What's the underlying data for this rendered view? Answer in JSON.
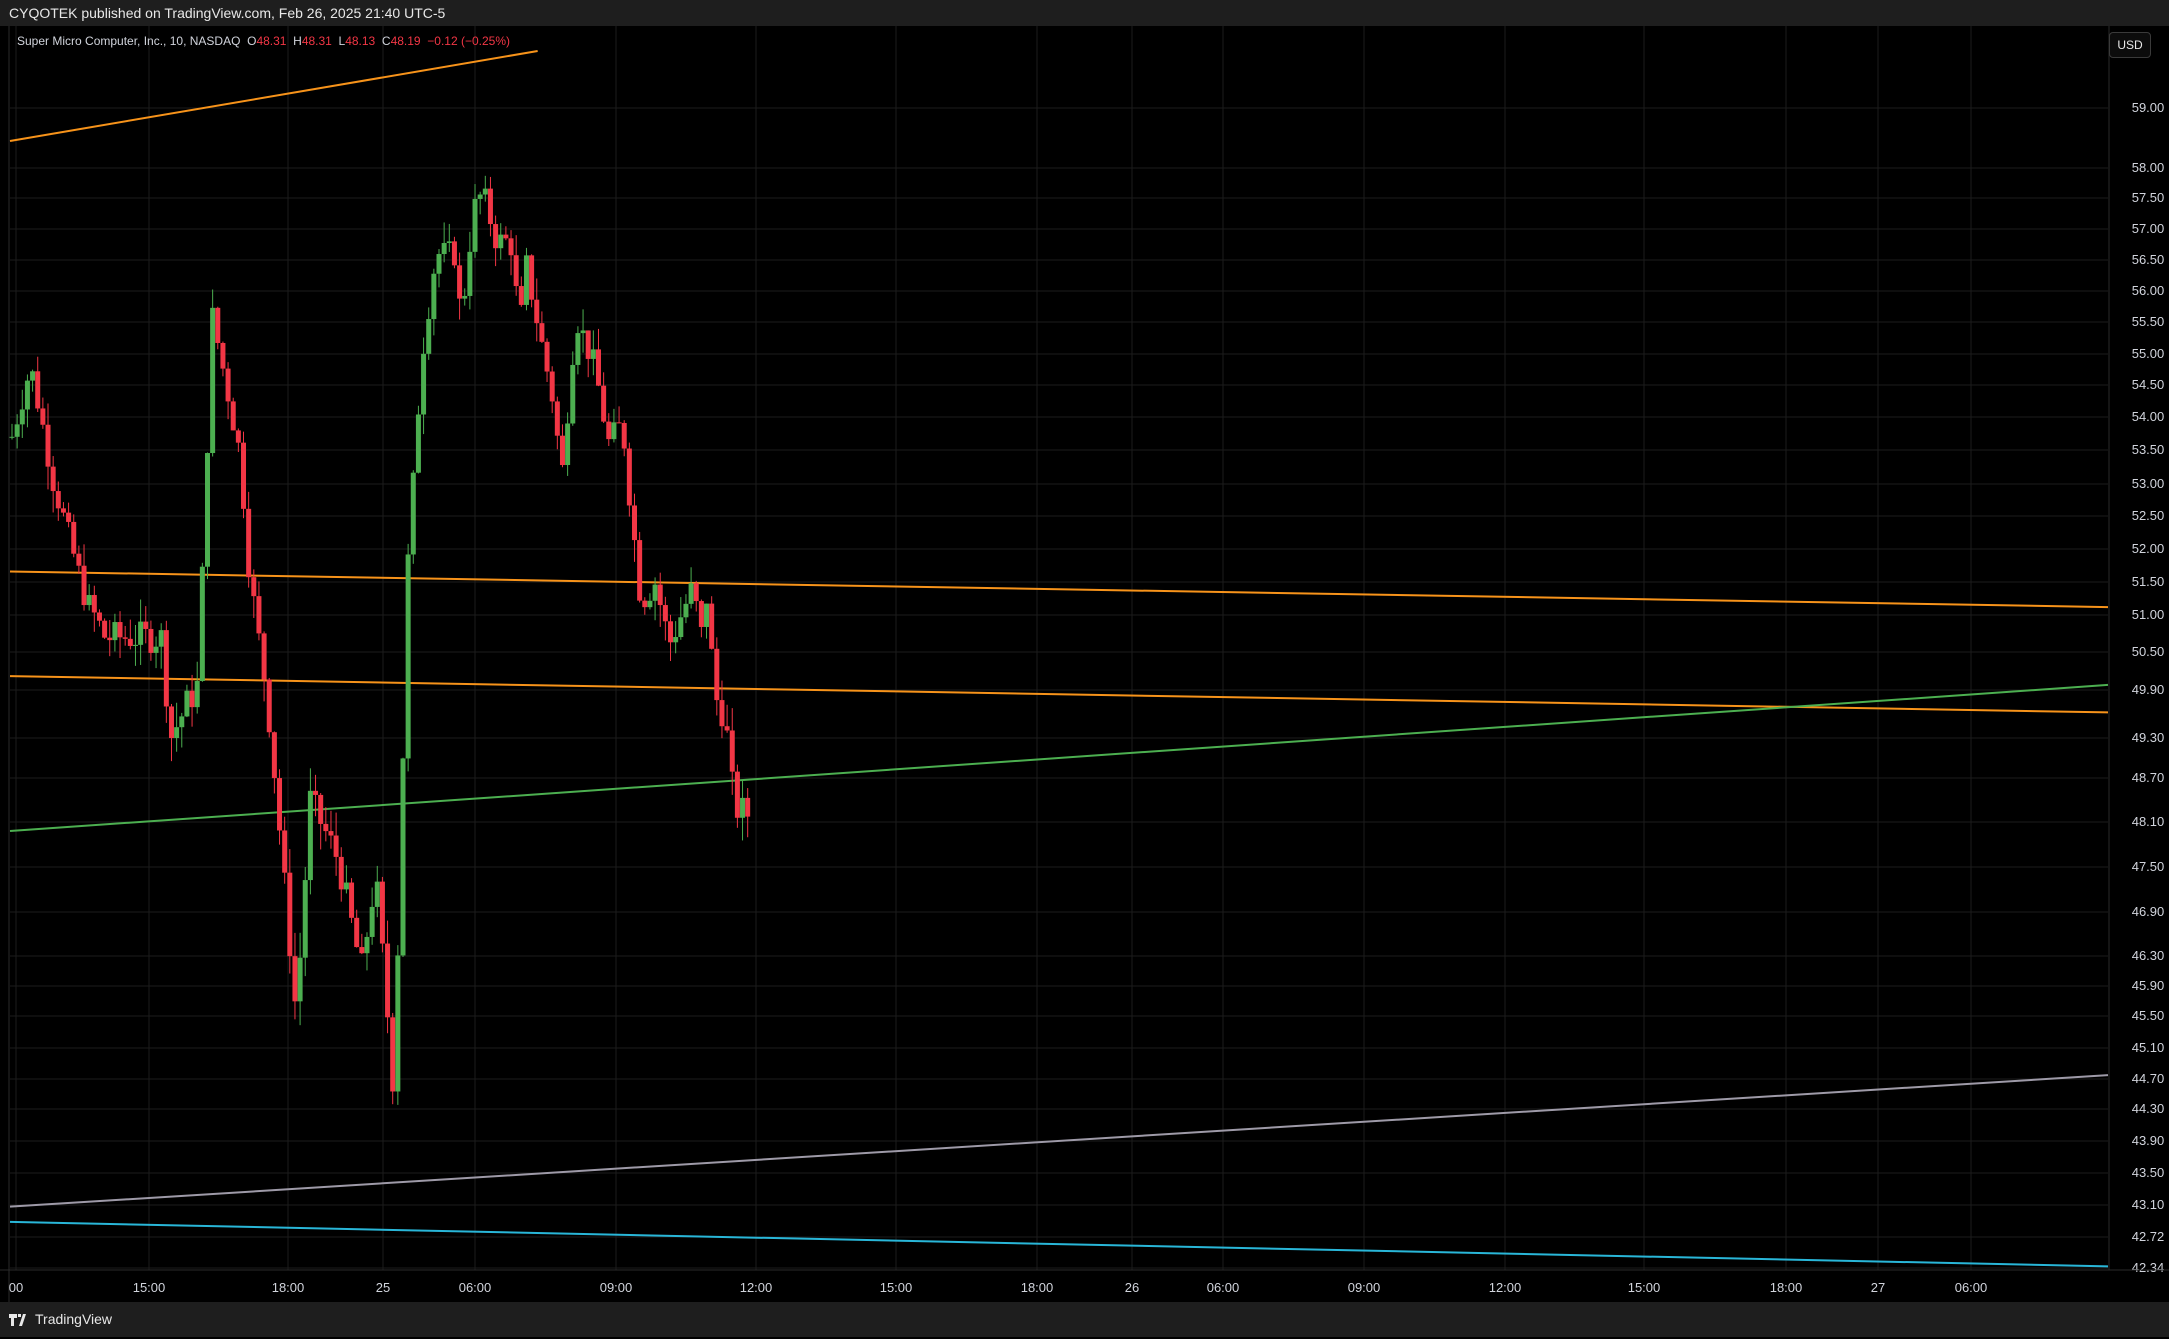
{
  "header": {
    "published": "CYQOTEK published on TradingView.com, Feb 26, 2025 21:40 UTC-5"
  },
  "legend": {
    "symbol": "Super Micro Computer, Inc., 10, NASDAQ",
    "o_label": "O",
    "o_value": "48.31",
    "h_label": "H",
    "h_value": "48.31",
    "l_label": "L",
    "l_value": "48.13",
    "c_label": "C",
    "c_value": "48.19",
    "change": "−0.12 (−0.25%)"
  },
  "currency": "USD",
  "footer": {
    "brand": "TradingView"
  },
  "colors": {
    "up": "#4caf50",
    "down": "#f23645",
    "grid": "#1c1c1c",
    "orange": "#f7931a",
    "green": "#4caf50",
    "gray": "#9e9aa8",
    "cyan": "#29b6d8"
  },
  "chart_data": {
    "type": "candlestick",
    "interval": "10",
    "y_ticks": [
      "59.00",
      "58.00",
      "57.50",
      "57.00",
      "56.50",
      "56.00",
      "55.50",
      "55.00",
      "54.50",
      "54.00",
      "53.50",
      "53.00",
      "52.50",
      "52.00",
      "51.50",
      "51.00",
      "50.50",
      "49.90",
      "49.30",
      "48.70",
      "48.10",
      "47.50",
      "46.90",
      "46.30",
      "45.90",
      "45.50",
      "45.10",
      "44.70",
      "44.30",
      "43.90",
      "43.50",
      "43.10",
      "42.72",
      "42.34"
    ],
    "x_ticks": [
      "00",
      "15:00",
      "18:00",
      "25",
      "06:00",
      "09:00",
      "12:00",
      "15:00",
      "18:00",
      "26",
      "06:00",
      "09:00",
      "12:00",
      "15:00",
      "18:00",
      "27",
      "06:00"
    ],
    "trendlines": [
      {
        "color": "orange",
        "t1": 0,
        "p1": 58.45,
        "t2": 56.4,
        "p2": 59.95
      },
      {
        "color": "orange",
        "t1": 0,
        "p1": 51.66,
        "t2": 90,
        "p2": 51.12
      },
      {
        "color": "orange",
        "t1": 0,
        "p1": 50.12,
        "t2": 90,
        "p2": 49.62
      },
      {
        "color": "green",
        "t1": 0,
        "p1": 47.98,
        "t2": 90,
        "p2": 49.98
      },
      {
        "color": "gray",
        "t1": 0,
        "p1": 43.08,
        "t2": 90,
        "p2": 44.75
      },
      {
        "color": "cyan",
        "t1": 0,
        "p1": 42.9,
        "t2": 90,
        "p2": 42.36
      }
    ],
    "key_points": [
      {
        "t": 0,
        "price": 53.7
      },
      {
        "t": 2,
        "price": 54.8
      },
      {
        "t": 4.5,
        "price": 53.0
      },
      {
        "t": 8,
        "price": 51.2
      },
      {
        "t": 10,
        "price": 50.7
      },
      {
        "t": 16,
        "price": 50.7
      },
      {
        "t": 17,
        "price": 49.3
      },
      {
        "t": 20,
        "price": 50.0
      },
      {
        "t": 21.5,
        "price": 55.6
      },
      {
        "t": 24.5,
        "price": 53.4
      },
      {
        "t": 25.5,
        "price": 51.6
      },
      {
        "t": 27.5,
        "price": 49.7
      },
      {
        "t": 30.5,
        "price": 45.5
      },
      {
        "t": 32,
        "price": 48.4
      },
      {
        "t": 35,
        "price": 47.6
      },
      {
        "t": 37.5,
        "price": 46.1
      },
      {
        "t": 39,
        "price": 47.4
      },
      {
        "t": 41,
        "price": 44.5
      },
      {
        "t": 42,
        "price": 49.3
      },
      {
        "t": 42.5,
        "price": 51.8
      },
      {
        "t": 44,
        "price": 55.0
      },
      {
        "t": 45.5,
        "price": 56.6
      },
      {
        "t": 47.5,
        "price": 56.6
      },
      {
        "t": 48.2,
        "price": 55.5
      },
      {
        "t": 49.5,
        "price": 57.3
      },
      {
        "t": 50.5,
        "price": 57.6
      },
      {
        "t": 52,
        "price": 56.8
      },
      {
        "t": 53.5,
        "price": 56.8
      },
      {
        "t": 54.5,
        "price": 55.4
      },
      {
        "t": 55.2,
        "price": 56.4
      },
      {
        "t": 56.5,
        "price": 55.4
      },
      {
        "t": 58,
        "price": 54.3
      },
      {
        "t": 59,
        "price": 53.1
      },
      {
        "t": 60.5,
        "price": 55.6
      },
      {
        "t": 62.5,
        "price": 54.8
      },
      {
        "t": 64,
        "price": 53.6
      },
      {
        "t": 65.5,
        "price": 53.9
      },
      {
        "t": 66.5,
        "price": 52.5
      },
      {
        "t": 67.5,
        "price": 51.2
      },
      {
        "t": 69,
        "price": 51.5
      },
      {
        "t": 70.5,
        "price": 50.6
      },
      {
        "t": 71.5,
        "price": 50.9
      },
      {
        "t": 73,
        "price": 51.4
      },
      {
        "t": 74,
        "price": 50.7
      },
      {
        "t": 74.5,
        "price": 51.3
      },
      {
        "t": 75.5,
        "price": 49.8
      },
      {
        "t": 76.5,
        "price": 49.6
      },
      {
        "t": 77.5,
        "price": 48.3
      },
      {
        "t": 79.3,
        "price": 48.19
      }
    ]
  }
}
